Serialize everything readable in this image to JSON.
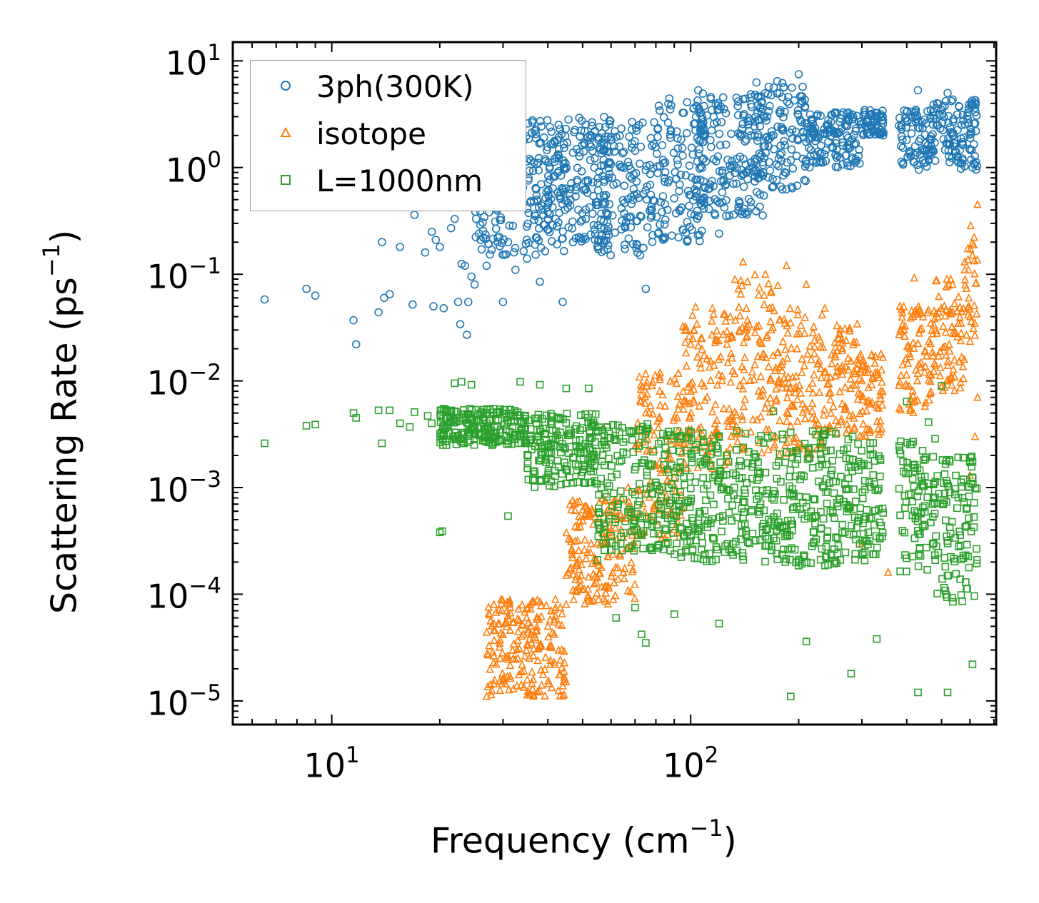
{
  "chart_data": {
    "type": "scatter",
    "title": "",
    "xlabel": "Frequency (cm",
    "xlabel_sup": "−1",
    "xlabel_tail": ")",
    "ylabel": "Scattering Rate (ps",
    "ylabel_sup": "−1",
    "ylabel_tail": ")",
    "xscale": "log",
    "yscale": "log",
    "xlim": [
      5.3,
      710
    ],
    "ylim": [
      6e-06,
      15
    ],
    "legend_position": "upper-left",
    "x_ticks": [
      {
        "base": "10",
        "exp": "1",
        "value": 10
      },
      {
        "base": "10",
        "exp": "2",
        "value": 100
      }
    ],
    "y_ticks": [
      {
        "base": "10",
        "exp": "1",
        "value": 10
      },
      {
        "base": "10",
        "exp": "0",
        "value": 1
      },
      {
        "base": "10",
        "exp": "−1",
        "value": 0.1
      },
      {
        "base": "10",
        "exp": "−2",
        "value": 0.01
      },
      {
        "base": "10",
        "exp": "−3",
        "value": 0.001
      },
      {
        "base": "10",
        "exp": "−4",
        "value": 0.0001
      },
      {
        "base": "10",
        "exp": "−5",
        "value": 1e-05
      }
    ],
    "series": [
      {
        "name": "3ph(300K)",
        "marker": "circle",
        "color": "#1f77b4",
        "points": [
          [
            6.5,
            0.058
          ],
          [
            8.5,
            0.073
          ],
          [
            9.0,
            0.063
          ],
          [
            11.5,
            0.037
          ],
          [
            11.7,
            0.022
          ],
          [
            13.5,
            0.044
          ],
          [
            14.0,
            0.06
          ],
          [
            13.8,
            0.2
          ],
          [
            14.5,
            0.065
          ],
          [
            15.5,
            0.18
          ],
          [
            16.8,
            0.052
          ],
          [
            17.0,
            0.36
          ],
          [
            18.2,
            0.16
          ],
          [
            19.0,
            0.25
          ],
          [
            19.2,
            0.05
          ],
          [
            19.5,
            0.21
          ],
          [
            20.0,
            0.18
          ],
          [
            20.5,
            0.048
          ],
          [
            21.5,
            0.27
          ],
          [
            22.0,
            0.33
          ],
          [
            22.5,
            0.055
          ],
          [
            22.8,
            0.034
          ],
          [
            23.0,
            0.125
          ],
          [
            23.5,
            0.12
          ],
          [
            23.8,
            0.027
          ],
          [
            24.0,
            0.055
          ],
          [
            24.5,
            0.095
          ],
          [
            25.0,
            0.08
          ],
          [
            26.0,
            0.21
          ],
          [
            27.0,
            0.12
          ],
          [
            29.0,
            0.2
          ],
          [
            30.0,
            0.055
          ],
          [
            31.0,
            0.2
          ],
          [
            32.5,
            0.11
          ],
          [
            35.0,
            0.14
          ],
          [
            38.0,
            0.085
          ],
          [
            44.0,
            0.055
          ],
          [
            47.0,
            0.2
          ],
          [
            55.0,
            0.18
          ],
          [
            75.0,
            0.073
          ],
          [
            120.0,
            0.24
          ],
          [
            200.0,
            7.5
          ],
          [
            180.0,
            6.2
          ],
          [
            105.0,
            5.3
          ],
          [
            430.0,
            5.3
          ],
          [
            520.0,
            5.0
          ],
          [
            610.0,
            1.0
          ]
        ],
        "bands": [
          {
            "from": 25,
            "to": 45,
            "ymin": 0.15,
            "ymax": 2.8
          },
          {
            "from": 40,
            "to": 60,
            "ymin": 0.2,
            "ymax": 3.0
          },
          {
            "from": 55,
            "to": 80,
            "ymin": 0.15,
            "ymax": 3.0
          },
          {
            "from": 80,
            "to": 110,
            "ymin": 0.2,
            "ymax": 4.5
          },
          {
            "from": 100,
            "to": 160,
            "ymin": 0.35,
            "ymax": 5.0
          },
          {
            "from": 150,
            "to": 210,
            "ymin": 0.6,
            "ymax": 6.5
          },
          {
            "from": 210,
            "to": 300,
            "ymin": 1.0,
            "ymax": 3.3
          },
          {
            "from": 300,
            "to": 345,
            "ymin": 2.0,
            "ymax": 3.5
          },
          {
            "from": 380,
            "to": 470,
            "ymin": 0.95,
            "ymax": 3.5
          },
          {
            "from": 470,
            "to": 630,
            "ymin": 0.95,
            "ymax": 4.5
          }
        ]
      },
      {
        "name": "isotope",
        "marker": "triangle",
        "color": "#ff7f0e",
        "points": [
          [
            27.0,
            1.1e-05
          ],
          [
            30.0,
            1.6e-05
          ],
          [
            33.0,
            2.5e-05
          ],
          [
            36.0,
            3.5e-05
          ],
          [
            40.0,
            5e-05
          ],
          [
            45.0,
            8e-05
          ],
          [
            50.0,
            0.00011
          ],
          [
            55.0,
            0.0002
          ],
          [
            60.0,
            0.0004
          ],
          [
            67.0,
            0.001
          ],
          [
            75.0,
            0.005
          ],
          [
            82.0,
            0.008
          ],
          [
            100.0,
            0.022
          ],
          [
            102.0,
            0.03
          ],
          [
            140.0,
            0.13
          ],
          [
            185.0,
            0.12
          ],
          [
            210.0,
            0.08
          ],
          [
            420.0,
            0.092
          ],
          [
            580.0,
            0.13
          ],
          [
            630.0,
            0.45
          ],
          [
            620.0,
            0.003
          ],
          [
            630.0,
            0.007
          ],
          [
            600.0,
            0.0013
          ],
          [
            355.0,
            0.00016
          ],
          [
            300.0,
            0.0003
          ]
        ],
        "bands": [
          {
            "from": 27,
            "to": 45,
            "ymin": 1.1e-05,
            "ymax": 9e-05
          },
          {
            "from": 45,
            "to": 70,
            "ymin": 8e-05,
            "ymax": 0.0008
          },
          {
            "from": 70,
            "to": 95,
            "ymin": 0.0003,
            "ymax": 0.012
          },
          {
            "from": 95,
            "to": 130,
            "ymin": 0.0015,
            "ymax": 0.05
          },
          {
            "from": 130,
            "to": 175,
            "ymin": 0.002,
            "ymax": 0.1
          },
          {
            "from": 175,
            "to": 240,
            "ymin": 0.002,
            "ymax": 0.05
          },
          {
            "from": 240,
            "to": 300,
            "ymin": 0.003,
            "ymax": 0.035
          },
          {
            "from": 300,
            "to": 345,
            "ymin": 0.003,
            "ymax": 0.02
          },
          {
            "from": 380,
            "to": 480,
            "ymin": 0.005,
            "ymax": 0.05
          },
          {
            "from": 480,
            "to": 580,
            "ymin": 0.008,
            "ymax": 0.09
          },
          {
            "from": 580,
            "to": 630,
            "ymin": 0.02,
            "ymax": 0.35
          }
        ]
      },
      {
        "name": "L=1000nm",
        "marker": "square",
        "color": "#2ca02c",
        "points": [
          [
            6.5,
            0.0026
          ],
          [
            8.5,
            0.0038
          ],
          [
            9.0,
            0.0039
          ],
          [
            11.5,
            0.005
          ],
          [
            11.7,
            0.0045
          ],
          [
            13.5,
            0.0053
          ],
          [
            13.8,
            0.0026
          ],
          [
            14.5,
            0.0053
          ],
          [
            15.5,
            0.004
          ],
          [
            16.5,
            0.0037
          ],
          [
            17.0,
            0.0051
          ],
          [
            18.5,
            0.0047
          ],
          [
            19.0,
            0.004
          ],
          [
            20.0,
            0.00038
          ],
          [
            20.3,
            0.00039
          ],
          [
            22.0,
            0.0095
          ],
          [
            23.0,
            0.0098
          ],
          [
            24.5,
            0.0092
          ],
          [
            28.0,
            0.0025
          ],
          [
            31.0,
            0.00054
          ],
          [
            33.5,
            0.0098
          ],
          [
            38.0,
            0.0092
          ],
          [
            45.0,
            0.0085
          ],
          [
            52.0,
            0.0085
          ],
          [
            55.0,
            0.00021
          ],
          [
            62.0,
            6e-05
          ],
          [
            70.0,
            7.5e-05
          ],
          [
            73.0,
            4.2e-05
          ],
          [
            75.0,
            3.5e-05
          ],
          [
            90.0,
            6.5e-05
          ],
          [
            120.0,
            5.3e-05
          ],
          [
            170.0,
            0.0052
          ],
          [
            190.0,
            1.1e-05
          ],
          [
            210.0,
            3.6e-05
          ],
          [
            280.0,
            1.8e-05
          ],
          [
            330.0,
            3.8e-05
          ],
          [
            430.0,
            1.2e-05
          ],
          [
            520.0,
            1.2e-05
          ],
          [
            610.0,
            2.2e-05
          ],
          [
            400.0,
            0.0064
          ],
          [
            460.0,
            0.0041
          ],
          [
            500.0,
            0.009
          ]
        ],
        "bands": [
          {
            "from": 20,
            "to": 35,
            "ymin": 0.0025,
            "ymax": 0.0055
          },
          {
            "from": 35,
            "to": 55,
            "ymin": 0.001,
            "ymax": 0.005
          },
          {
            "from": 55,
            "to": 80,
            "ymin": 0.00025,
            "ymax": 0.004
          },
          {
            "from": 80,
            "to": 150,
            "ymin": 0.0002,
            "ymax": 0.0035
          },
          {
            "from": 150,
            "to": 260,
            "ymin": 0.00018,
            "ymax": 0.0035
          },
          {
            "from": 260,
            "to": 345,
            "ymin": 0.0002,
            "ymax": 0.003
          },
          {
            "from": 380,
            "to": 480,
            "ymin": 0.00015,
            "ymax": 0.003
          },
          {
            "from": 480,
            "to": 630,
            "ymin": 8e-05,
            "ymax": 0.002
          }
        ]
      }
    ]
  }
}
